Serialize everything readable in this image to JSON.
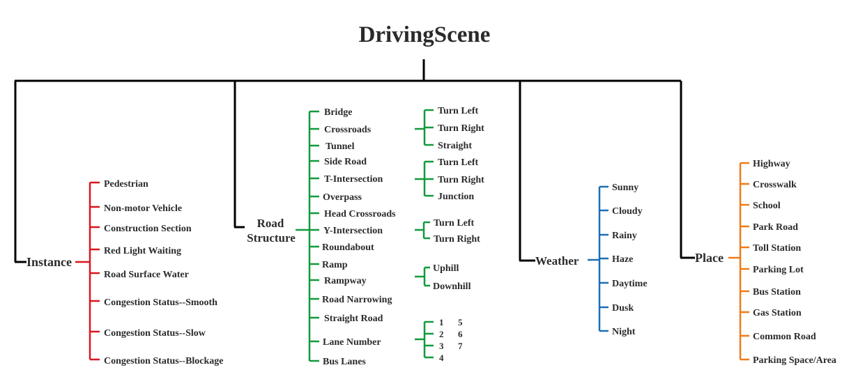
{
  "title": "DrivingScene",
  "colors": {
    "trunk": "#000000",
    "instance": "#d9161f",
    "road": "#119a3c",
    "weather": "#1b6fb5",
    "place": "#ef7a19",
    "text": "#2b2b2b"
  },
  "instance": {
    "label": "Instance",
    "items": [
      "Pedestrian",
      "Non-motor Vehicle",
      "Construction Section",
      "Red Light Waiting",
      "Road Surface Water",
      "Congestion Status--Smooth",
      "Congestion Status--Slow",
      "Congestion Status--Blockage"
    ]
  },
  "road": {
    "label_line1": "Road",
    "label_line2": "Structure",
    "items": [
      "Bridge",
      "Crossroads",
      "Tunnel",
      "Side Road",
      "T-Intersection",
      "Overpass",
      "Head Crossroads",
      "Y-Intersection",
      "Roundabout",
      "Ramp",
      "Rampway",
      "Road Narrowing",
      "Straight Road",
      "Lane Number",
      "Bus Lanes"
    ],
    "crossroads_sub": [
      "Turn Left",
      "Turn Right",
      "Straight"
    ],
    "t_intersection_sub": [
      "Turn Left",
      "Turn Right",
      "Junction"
    ],
    "y_intersection_sub": [
      "Turn Left",
      "Turn Right"
    ],
    "rampway_sub": [
      "Uphill",
      "Downhill"
    ],
    "lane_number_sub": [
      "1",
      "2",
      "3",
      "4",
      "5",
      "6",
      "7"
    ]
  },
  "weather": {
    "label": "Weather",
    "items": [
      "Sunny",
      "Cloudy",
      "Rainy",
      "Haze",
      "Daytime",
      "Dusk",
      "Night"
    ]
  },
  "place": {
    "label": "Place",
    "items": [
      "Highway",
      "Crosswalk",
      "School",
      "Park Road",
      "Toll Station",
      "Parking Lot",
      "Bus Station",
      "Gas Station",
      "Common Road",
      "Parking Space/Area"
    ]
  }
}
